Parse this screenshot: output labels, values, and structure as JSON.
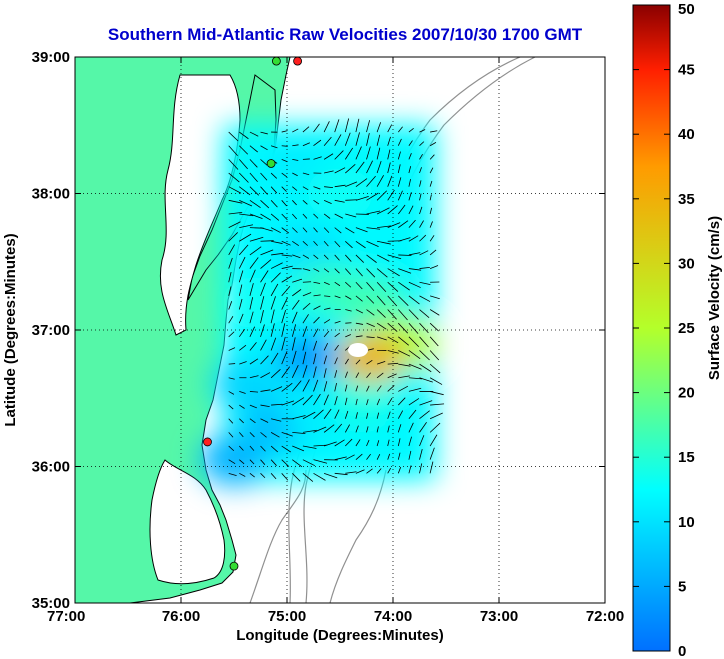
{
  "chart_data": {
    "type": "heatmap",
    "title": "Southern Mid-Atlantic Raw Velocities 2007/10/30 1700 GMT",
    "xlabel": "Longitude (Degrees:Minutes)",
    "ylabel": "Latitude (Degrees:Minutes)",
    "colorbar_label": "Surface Velocity (cm/s)",
    "xlim": [
      -77,
      -72
    ],
    "ylim": [
      35,
      39
    ],
    "x_ticks": [
      -77,
      -76,
      -75,
      -74,
      -73,
      -72
    ],
    "x_tick_labels": [
      "77:00",
      "76:00",
      "75:00",
      "74:00",
      "73:00",
      "72:00"
    ],
    "y_ticks": [
      35,
      36,
      37,
      38,
      39
    ],
    "y_tick_labels": [
      "35:00",
      "36:00",
      "37:00",
      "38:00",
      "39:00"
    ],
    "colorbar_range": [
      0,
      50
    ],
    "colorbar_ticks": [
      0,
      5,
      10,
      15,
      20,
      25,
      30,
      35,
      40,
      45,
      50
    ],
    "colorbar_tick_labels": [
      "0",
      "5",
      "10",
      "15",
      "20",
      "25",
      "30",
      "35",
      "40",
      "45",
      "50"
    ],
    "colormap": "jet",
    "grid": true,
    "grid_style": "dotted",
    "colors": {
      "title": "#0000cc",
      "land": "#55f7a8",
      "coastline": "#000000",
      "isobaths": "#909090",
      "vectors": "#000000",
      "site_markers": [
        "#ff2020",
        "#33dd33"
      ]
    },
    "coverage_area": {
      "lon_range": [
        -75.6,
        -73.6
      ],
      "lat_range": [
        35.9,
        38.5
      ]
    },
    "velocity_regions": [
      {
        "lon": -75.3,
        "lat": 38.1,
        "value": 12
      },
      {
        "lon": -74.9,
        "lat": 38.2,
        "value": 11
      },
      {
        "lon": -74.5,
        "lat": 38.0,
        "value": 13
      },
      {
        "lon": -74.8,
        "lat": 37.6,
        "value": 10
      },
      {
        "lon": -74.6,
        "lat": 37.3,
        "value": 16
      },
      {
        "lon": -74.2,
        "lat": 37.2,
        "value": 17
      },
      {
        "lon": -73.9,
        "lat": 36.9,
        "value": 25
      },
      {
        "lon": -75.3,
        "lat": 37.2,
        "value": 13
      },
      {
        "lon": -75.4,
        "lat": 36.6,
        "value": 9
      },
      {
        "lon": -75.1,
        "lat": 36.3,
        "value": 7
      },
      {
        "lon": -74.7,
        "lat": 36.4,
        "value": 11
      },
      {
        "lon": -74.8,
        "lat": 36.8,
        "value": 4
      },
      {
        "lon": -74.3,
        "lat": 36.5,
        "value": 14
      },
      {
        "lon": -74.2,
        "lat": 36.8,
        "value": 34
      },
      {
        "lon": -75.5,
        "lat": 36.05,
        "value": 6
      }
    ],
    "site_markers": [
      {
        "lon": -74.9,
        "lat": 38.97,
        "color": "red"
      },
      {
        "lon": -75.1,
        "lat": 38.97,
        "color": "green"
      },
      {
        "lon": -75.15,
        "lat": 38.22,
        "color": "green"
      },
      {
        "lon": -75.75,
        "lat": 36.18,
        "color": "red"
      },
      {
        "lon": -75.5,
        "lat": 35.27,
        "color": "green"
      }
    ]
  }
}
